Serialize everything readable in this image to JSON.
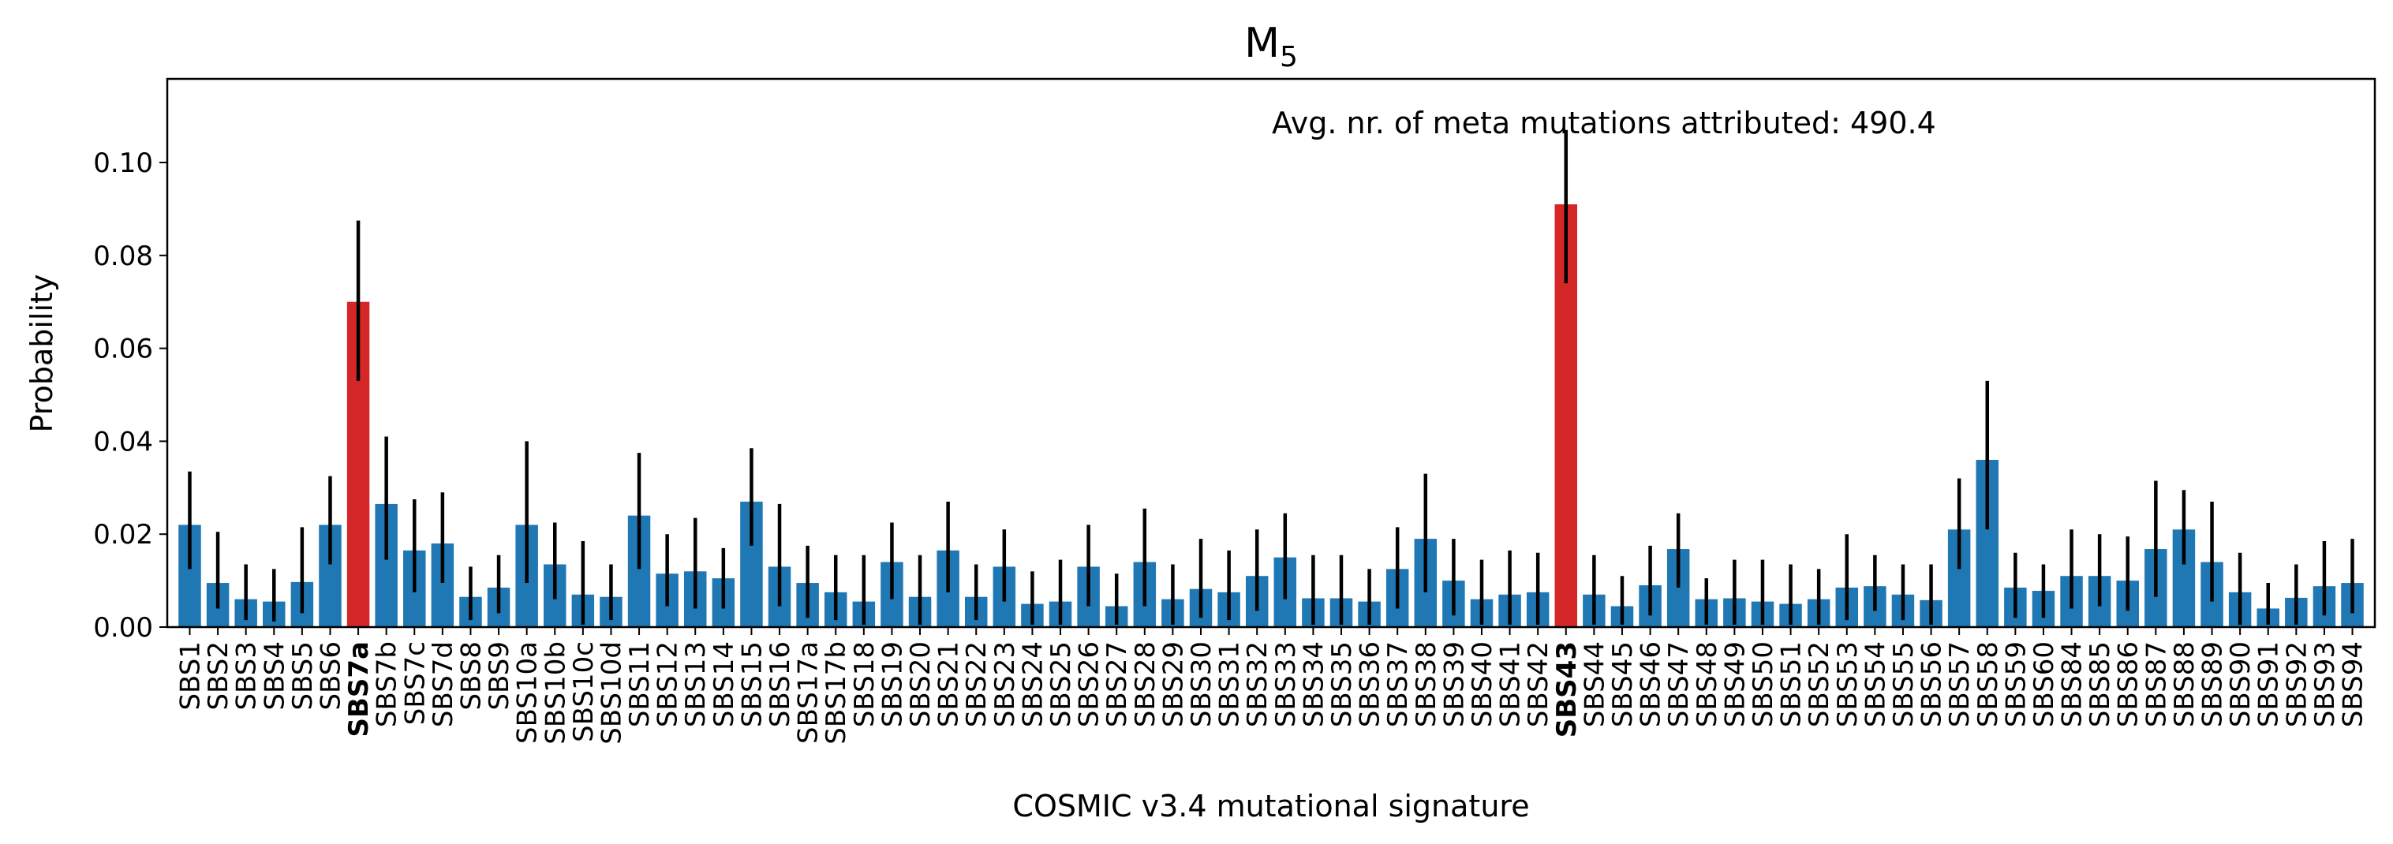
{
  "chart_data": {
    "type": "bar",
    "title": "M",
    "title_subscript": "5",
    "xlabel": "COSMIC v3.4 mutational signature",
    "ylabel": "Probability",
    "ylim": [
      0,
      0.118
    ],
    "yticks": [
      0.0,
      0.02,
      0.04,
      0.06,
      0.08,
      0.1
    ],
    "ytick_labels": [
      "0.00",
      "0.02",
      "0.04",
      "0.06",
      "0.08",
      "0.10"
    ],
    "annotation": "Avg. nr. of meta mutations attributed: 490.4",
    "grid": false,
    "colors": {
      "default": "#1f77b4",
      "highlight": "#d62728",
      "error": "#000000"
    },
    "highlighted": [
      "SBS7a",
      "SBS43"
    ],
    "categories": [
      "SBS1",
      "SBS2",
      "SBS3",
      "SBS4",
      "SBS5",
      "SBS6",
      "SBS7a",
      "SBS7b",
      "SBS7c",
      "SBS7d",
      "SBS8",
      "SBS9",
      "SBS10a",
      "SBS10b",
      "SBS10c",
      "SBS10d",
      "SBS11",
      "SBS12",
      "SBS13",
      "SBS14",
      "SBS15",
      "SBS16",
      "SBS17a",
      "SBS17b",
      "SBS18",
      "SBS19",
      "SBS20",
      "SBS21",
      "SBS22",
      "SBS23",
      "SBS24",
      "SBS25",
      "SBS26",
      "SBS27",
      "SBS28",
      "SBS29",
      "SBS30",
      "SBS31",
      "SBS32",
      "SBS33",
      "SBS34",
      "SBS35",
      "SBS36",
      "SBS37",
      "SBS38",
      "SBS39",
      "SBS40",
      "SBS41",
      "SBS42",
      "SBS43",
      "SBS44",
      "SBS45",
      "SBS46",
      "SBS47",
      "SBS48",
      "SBS49",
      "SBS50",
      "SBS51",
      "SBS52",
      "SBS53",
      "SBS54",
      "SBS55",
      "SBS56",
      "SBS57",
      "SBS58",
      "SBS59",
      "SBS60",
      "SBS84",
      "SBS85",
      "SBS86",
      "SBS87",
      "SBS88",
      "SBS89",
      "SBS90",
      "SBS91",
      "SBS92",
      "SBS93",
      "SBS94"
    ],
    "values": [
      0.022,
      0.0095,
      0.006,
      0.0055,
      0.0097,
      0.022,
      0.07,
      0.0265,
      0.0165,
      0.018,
      0.0065,
      0.0085,
      0.022,
      0.0135,
      0.007,
      0.0065,
      0.024,
      0.0115,
      0.012,
      0.0105,
      0.027,
      0.013,
      0.0095,
      0.0075,
      0.0055,
      0.014,
      0.0065,
      0.0165,
      0.0065,
      0.013,
      0.005,
      0.0055,
      0.013,
      0.0045,
      0.014,
      0.006,
      0.0082,
      0.0075,
      0.011,
      0.015,
      0.0062,
      0.0062,
      0.0055,
      0.0125,
      0.019,
      0.01,
      0.006,
      0.007,
      0.0075,
      0.091,
      0.007,
      0.0045,
      0.009,
      0.0168,
      0.006,
      0.0062,
      0.0055,
      0.005,
      0.006,
      0.0085,
      0.0088,
      0.007,
      0.0058,
      0.021,
      0.036,
      0.0085,
      0.0078,
      0.011,
      0.011,
      0.01,
      0.0168,
      0.021,
      0.014,
      0.0075,
      0.004,
      0.0063,
      0.0088,
      0.0095
    ],
    "error_low": [
      0.0125,
      0.004,
      0.0015,
      0.0012,
      0.003,
      0.0135,
      0.053,
      0.0145,
      0.0075,
      0.0095,
      0.0015,
      0.003,
      0.0095,
      0.006,
      0.0005,
      0.0015,
      0.0125,
      0.0045,
      0.004,
      0.004,
      0.0175,
      0.0045,
      0.002,
      0.0015,
      0.0005,
      0.006,
      0.0005,
      0.0075,
      0.0015,
      0.0055,
      0.0005,
      0.0005,
      0.0045,
      0.0005,
      0.0045,
      0.0005,
      0.002,
      0.0015,
      0.0035,
      0.006,
      0.0005,
      0.0005,
      0.0005,
      0.004,
      0.0075,
      0.0025,
      0.0005,
      0.0005,
      0.0005,
      0.074,
      0.0005,
      0.0005,
      0.0025,
      0.0085,
      0.0005,
      0.0005,
      0.0005,
      0.0005,
      0.0005,
      0.0015,
      0.0035,
      0.0015,
      0.0005,
      0.0125,
      0.021,
      0.002,
      0.002,
      0.004,
      0.0045,
      0.0035,
      0.0065,
      0.0135,
      0.0055,
      0.0005,
      0.0005,
      0.0005,
      0.0025,
      0.003
    ],
    "error_high": [
      0.0335,
      0.0205,
      0.0135,
      0.0125,
      0.0215,
      0.0325,
      0.0875,
      0.041,
      0.0275,
      0.029,
      0.013,
      0.0155,
      0.04,
      0.0225,
      0.0185,
      0.0135,
      0.0375,
      0.02,
      0.0235,
      0.017,
      0.0385,
      0.0265,
      0.0175,
      0.0155,
      0.0155,
      0.0225,
      0.0155,
      0.027,
      0.0135,
      0.021,
      0.012,
      0.0145,
      0.022,
      0.0115,
      0.0255,
      0.0135,
      0.019,
      0.0165,
      0.021,
      0.0245,
      0.0155,
      0.0155,
      0.0125,
      0.0215,
      0.033,
      0.019,
      0.0145,
      0.0165,
      0.016,
      0.107,
      0.0155,
      0.011,
      0.0175,
      0.0245,
      0.0105,
      0.0145,
      0.0145,
      0.0135,
      0.0125,
      0.02,
      0.0155,
      0.0135,
      0.0135,
      0.032,
      0.053,
      0.016,
      0.0135,
      0.021,
      0.02,
      0.0195,
      0.0315,
      0.0295,
      0.027,
      0.016,
      0.0095,
      0.0135,
      0.0185,
      0.019
    ]
  }
}
